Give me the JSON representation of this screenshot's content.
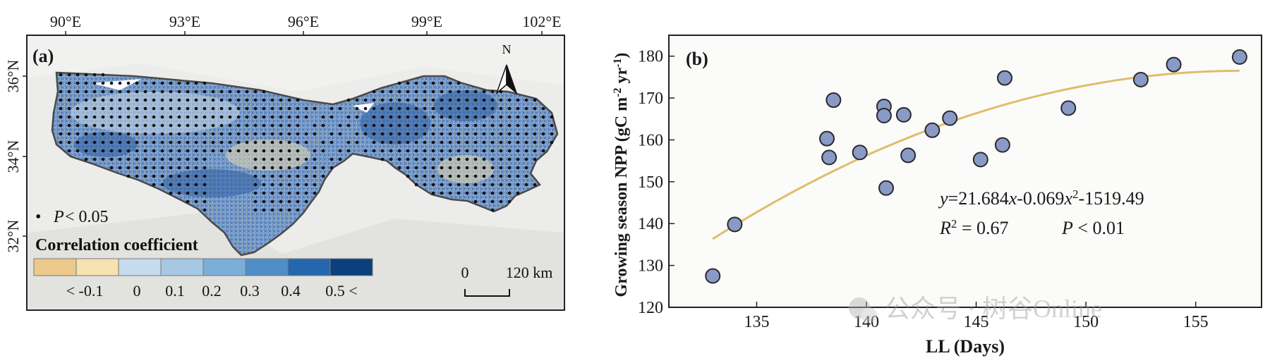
{
  "panel_a": {
    "label": "(a)",
    "lon_labels": [
      "90°E",
      "93°E",
      "96°E",
      "99°E",
      "102°E"
    ],
    "lat_labels": [
      "36°N",
      "34°N",
      "32°N"
    ],
    "north_letter": "N",
    "sig_marker": "•",
    "sig_label_symbol": "P",
    "sig_label_rest": " < 0.05",
    "legend_title": "Correlation coefficient",
    "legend_colors": [
      "#ecc98a",
      "#f7e2b1",
      "#c6dced",
      "#a6c8e4",
      "#7baed8",
      "#4f8ec7",
      "#2467ad",
      "#0b3f7d"
    ],
    "legend_ticks": [
      "< -0.1",
      "0",
      "0.1",
      "0.2",
      "0.3",
      "0.4",
      "0.5 <"
    ],
    "scale_zero": "0",
    "scale_end": "120 km",
    "colors": {
      "map_base": "#6f93c4",
      "map_deep": "#2f5fa3",
      "map_light": "#c5d6e6",
      "map_tan": "#e6d7ad",
      "outline": "#4a4a4a"
    }
  },
  "chart_data": {
    "type": "scatter",
    "panel_label": "(b)",
    "xlabel": "LL (Days)",
    "ylabel_main": "Growing season NPP (gC m",
    "ylabel_sup1": "-2",
    "ylabel_mid": " yr",
    "ylabel_sup2": "-1",
    "ylabel_end": ")",
    "xlim": [
      131,
      158
    ],
    "ylim": [
      120,
      185
    ],
    "xticks": [
      135,
      140,
      145,
      150,
      155
    ],
    "yticks": [
      120,
      130,
      140,
      150,
      160,
      170,
      180
    ],
    "points": [
      {
        "x": 133.0,
        "y": 127.5
      },
      {
        "x": 134.0,
        "y": 139.8
      },
      {
        "x": 138.2,
        "y": 160.3
      },
      {
        "x": 138.3,
        "y": 155.8
      },
      {
        "x": 138.5,
        "y": 169.5
      },
      {
        "x": 139.7,
        "y": 157.0
      },
      {
        "x": 140.8,
        "y": 168.0
      },
      {
        "x": 140.8,
        "y": 165.8
      },
      {
        "x": 140.9,
        "y": 148.5
      },
      {
        "x": 141.7,
        "y": 166.0
      },
      {
        "x": 141.9,
        "y": 156.3
      },
      {
        "x": 143.0,
        "y": 162.3
      },
      {
        "x": 143.8,
        "y": 165.2
      },
      {
        "x": 145.2,
        "y": 155.3
      },
      {
        "x": 146.2,
        "y": 158.8
      },
      {
        "x": 146.3,
        "y": 174.8
      },
      {
        "x": 149.2,
        "y": 167.6
      },
      {
        "x": 152.5,
        "y": 174.4
      },
      {
        "x": 154.0,
        "y": 178.0
      },
      {
        "x": 157.0,
        "y": 179.8
      }
    ],
    "fit": {
      "a": -0.069,
      "b": 21.684,
      "c": -1519.49,
      "x_from": 133.0,
      "x_to": 157.0
    },
    "eq_y": "y",
    "eq_rest": "=21.684",
    "eq_x1": "x",
    "eq_mid": "-0.069",
    "eq_x2": "x",
    "eq_sup": "2",
    "eq_end": "-1519.49",
    "r2_r": "R",
    "r2_sup": "2",
    "r2_value": " = 0.67",
    "p_symbol": "P",
    "p_value": " < 0.01",
    "watermark": "公众号 · 树谷Online",
    "colors": {
      "point_fill": "#8a9ac7",
      "point_stroke": "#2a2a2a",
      "fit_line": "#e0bd6a",
      "plot_bg": "#fbfbfa"
    }
  }
}
